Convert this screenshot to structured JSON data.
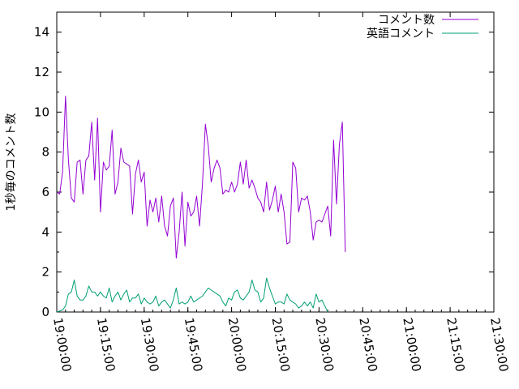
{
  "chart_data": {
    "type": "line",
    "title": "",
    "xlabel": "",
    "ylabel": "1秒毎のコメント数",
    "ylim": [
      0,
      15
    ],
    "yticks": [
      0,
      2,
      4,
      6,
      8,
      10,
      12,
      14
    ],
    "xlim": [
      "19:00:00",
      "21:30:00"
    ],
    "xticks": [
      "19:00:00",
      "19:15:00",
      "19:30:00",
      "19:45:00",
      "20:00:00",
      "20:15:00",
      "20:30:00",
      "20:45:00",
      "21:00:00",
      "21:15:00",
      "21:30:00"
    ],
    "grid": false,
    "legend_position": "top-right",
    "series": [
      {
        "name": "コメント数",
        "color": "#9400d3",
        "points": [
          [
            "19:00:00",
            6.0
          ],
          [
            "19:01:00",
            5.9
          ],
          [
            "19:02:00",
            7.0
          ],
          [
            "19:03:00",
            10.8
          ],
          [
            "19:04:00",
            7.6
          ],
          [
            "19:05:00",
            5.7
          ],
          [
            "19:06:00",
            5.5
          ],
          [
            "19:07:00",
            7.5
          ],
          [
            "19:08:00",
            7.6
          ],
          [
            "19:09:00",
            5.9
          ],
          [
            "19:10:00",
            7.6
          ],
          [
            "19:11:00",
            7.8
          ],
          [
            "19:12:00",
            9.5
          ],
          [
            "19:13:00",
            6.6
          ],
          [
            "19:14:00",
            9.7
          ],
          [
            "19:15:00",
            5.0
          ],
          [
            "19:16:00",
            7.5
          ],
          [
            "19:17:00",
            7.1
          ],
          [
            "19:18:00",
            7.3
          ],
          [
            "19:19:00",
            9.1
          ],
          [
            "19:20:00",
            5.9
          ],
          [
            "19:21:00",
            6.5
          ],
          [
            "19:22:00",
            8.2
          ],
          [
            "19:23:00",
            7.5
          ],
          [
            "19:24:00",
            7.4
          ],
          [
            "19:25:00",
            7.3
          ],
          [
            "19:26:00",
            4.9
          ],
          [
            "19:27:00",
            6.9
          ],
          [
            "19:28:00",
            7.6
          ],
          [
            "19:29:00",
            6.5
          ],
          [
            "19:30:00",
            7.0
          ],
          [
            "19:31:00",
            4.3
          ],
          [
            "19:32:00",
            5.6
          ],
          [
            "19:33:00",
            5.0
          ],
          [
            "19:34:00",
            5.7
          ],
          [
            "19:35:00",
            4.5
          ],
          [
            "19:36:00",
            5.8
          ],
          [
            "19:37:00",
            4.3
          ],
          [
            "19:38:00",
            3.8
          ],
          [
            "19:39:00",
            5.3
          ],
          [
            "19:40:00",
            5.7
          ],
          [
            "19:41:00",
            2.7
          ],
          [
            "19:42:00",
            4.0
          ],
          [
            "19:43:00",
            6.0
          ],
          [
            "19:44:00",
            3.3
          ],
          [
            "19:45:00",
            5.5
          ],
          [
            "19:46:00",
            4.8
          ],
          [
            "19:47:00",
            5.0
          ],
          [
            "19:48:00",
            5.8
          ],
          [
            "19:49:00",
            4.3
          ],
          [
            "19:50:00",
            6.4
          ],
          [
            "19:51:00",
            9.4
          ],
          [
            "19:52:00",
            8.3
          ],
          [
            "19:53:00",
            6.5
          ],
          [
            "19:54:00",
            7.2
          ],
          [
            "19:55:00",
            7.6
          ],
          [
            "19:56:00",
            7.2
          ],
          [
            "19:57:00",
            5.9
          ],
          [
            "19:58:00",
            6.1
          ],
          [
            "19:59:00",
            6.0
          ],
          [
            "20:00:00",
            6.5
          ],
          [
            "20:01:00",
            6.0
          ],
          [
            "20:02:00",
            6.4
          ],
          [
            "20:03:00",
            7.5
          ],
          [
            "20:04:00",
            6.4
          ],
          [
            "20:05:00",
            7.6
          ],
          [
            "20:06:00",
            6.2
          ],
          [
            "20:07:00",
            6.6
          ],
          [
            "20:08:00",
            6.2
          ],
          [
            "20:09:00",
            5.7
          ],
          [
            "20:10:00",
            5.5
          ],
          [
            "20:11:00",
            5.0
          ],
          [
            "20:12:00",
            6.5
          ],
          [
            "20:13:00",
            5.1
          ],
          [
            "20:14:00",
            5.6
          ],
          [
            "20:15:00",
            6.3
          ],
          [
            "20:16:00",
            5.0
          ],
          [
            "20:17:00",
            5.9
          ],
          [
            "20:18:00",
            5.0
          ],
          [
            "20:19:00",
            3.4
          ],
          [
            "20:20:00",
            3.5
          ],
          [
            "20:21:00",
            7.5
          ],
          [
            "20:22:00",
            7.2
          ],
          [
            "20:23:00",
            5.0
          ],
          [
            "20:24:00",
            5.7
          ],
          [
            "20:25:00",
            5.6
          ],
          [
            "20:26:00",
            5.8
          ],
          [
            "20:27:00",
            5.0
          ],
          [
            "20:28:00",
            3.6
          ],
          [
            "20:29:00",
            4.5
          ],
          [
            "20:30:00",
            4.6
          ],
          [
            "20:31:00",
            4.5
          ],
          [
            "20:32:00",
            4.9
          ],
          [
            "20:33:00",
            5.3
          ],
          [
            "20:34:00",
            3.8
          ],
          [
            "20:35:00",
            8.6
          ],
          [
            "20:36:00",
            5.4
          ],
          [
            "20:37:00",
            8.4
          ],
          [
            "20:38:00",
            9.5
          ],
          [
            "20:39:00",
            3.0
          ]
        ]
      },
      {
        "name": "英語コメント",
        "color": "#009e73",
        "points": [
          [
            "19:00:00",
            0.0
          ],
          [
            "19:01:00",
            0.05
          ],
          [
            "19:02:00",
            0.1
          ],
          [
            "19:03:00",
            0.3
          ],
          [
            "19:04:00",
            0.9
          ],
          [
            "19:05:00",
            1.0
          ],
          [
            "19:06:00",
            1.6
          ],
          [
            "19:07:00",
            0.8
          ],
          [
            "19:08:00",
            0.6
          ],
          [
            "19:09:00",
            0.6
          ],
          [
            "19:10:00",
            0.8
          ],
          [
            "19:11:00",
            1.3
          ],
          [
            "19:12:00",
            1.0
          ],
          [
            "19:13:00",
            1.0
          ],
          [
            "19:14:00",
            0.8
          ],
          [
            "19:15:00",
            1.0
          ],
          [
            "19:16:00",
            0.8
          ],
          [
            "19:17:00",
            0.7
          ],
          [
            "19:18:00",
            1.2
          ],
          [
            "19:19:00",
            0.5
          ],
          [
            "19:20:00",
            0.8
          ],
          [
            "19:21:00",
            1.0
          ],
          [
            "19:22:00",
            0.6
          ],
          [
            "19:23:00",
            0.9
          ],
          [
            "19:24:00",
            1.1
          ],
          [
            "19:25:00",
            0.5
          ],
          [
            "19:26:00",
            0.7
          ],
          [
            "19:27:00",
            0.7
          ],
          [
            "19:28:00",
            0.9
          ],
          [
            "19:29:00",
            0.4
          ],
          [
            "19:30:00",
            0.7
          ],
          [
            "19:31:00",
            0.5
          ],
          [
            "19:32:00",
            0.4
          ],
          [
            "19:33:00",
            0.5
          ],
          [
            "19:34:00",
            0.8
          ],
          [
            "19:35:00",
            0.3
          ],
          [
            "19:36:00",
            0.5
          ],
          [
            "19:37:00",
            0.6
          ],
          [
            "19:38:00",
            0.4
          ],
          [
            "19:39:00",
            0.2
          ],
          [
            "19:40:00",
            0.6
          ],
          [
            "19:41:00",
            1.2
          ],
          [
            "19:42:00",
            0.4
          ],
          [
            "19:43:00",
            0.5
          ],
          [
            "19:44:00",
            0.4
          ],
          [
            "19:45:00",
            0.5
          ],
          [
            "19:46:00",
            0.8
          ],
          [
            "19:47:00",
            0.5
          ],
          [
            "19:48:00",
            0.6
          ],
          [
            "19:49:00",
            0.7
          ],
          [
            "19:50:00",
            0.8
          ],
          [
            "19:51:00",
            1.0
          ],
          [
            "19:52:00",
            1.2
          ],
          [
            "19:53:00",
            1.1
          ],
          [
            "19:54:00",
            1.0
          ],
          [
            "19:55:00",
            0.9
          ],
          [
            "19:56:00",
            0.8
          ],
          [
            "19:57:00",
            0.5
          ],
          [
            "19:58:00",
            0.3
          ],
          [
            "19:59:00",
            0.7
          ],
          [
            "20:00:00",
            0.6
          ],
          [
            "20:01:00",
            1.0
          ],
          [
            "20:02:00",
            1.1
          ],
          [
            "20:03:00",
            0.7
          ],
          [
            "20:04:00",
            0.6
          ],
          [
            "20:05:00",
            0.8
          ],
          [
            "20:06:00",
            1.0
          ],
          [
            "20:07:00",
            1.6
          ],
          [
            "20:08:00",
            1.1
          ],
          [
            "20:09:00",
            1.0
          ],
          [
            "20:10:00",
            0.5
          ],
          [
            "20:11:00",
            0.7
          ],
          [
            "20:12:00",
            1.7
          ],
          [
            "20:13:00",
            1.2
          ],
          [
            "20:14:00",
            0.8
          ],
          [
            "20:15:00",
            0.4
          ],
          [
            "20:16:00",
            0.5
          ],
          [
            "20:17:00",
            0.5
          ],
          [
            "20:18:00",
            0.4
          ],
          [
            "20:19:00",
            0.9
          ],
          [
            "20:20:00",
            0.6
          ],
          [
            "20:21:00",
            0.5
          ],
          [
            "20:22:00",
            0.4
          ],
          [
            "20:23:00",
            0.2
          ],
          [
            "20:24:00",
            0.3
          ],
          [
            "20:25:00",
            0.5
          ],
          [
            "20:26:00",
            0.3
          ],
          [
            "20:27:00",
            0.5
          ],
          [
            "20:28:00",
            0.2
          ],
          [
            "20:29:00",
            0.9
          ],
          [
            "20:30:00",
            0.5
          ],
          [
            "20:31:00",
            0.6
          ],
          [
            "20:32:00",
            0.3
          ],
          [
            "20:33:00",
            0.0
          ]
        ]
      }
    ]
  }
}
